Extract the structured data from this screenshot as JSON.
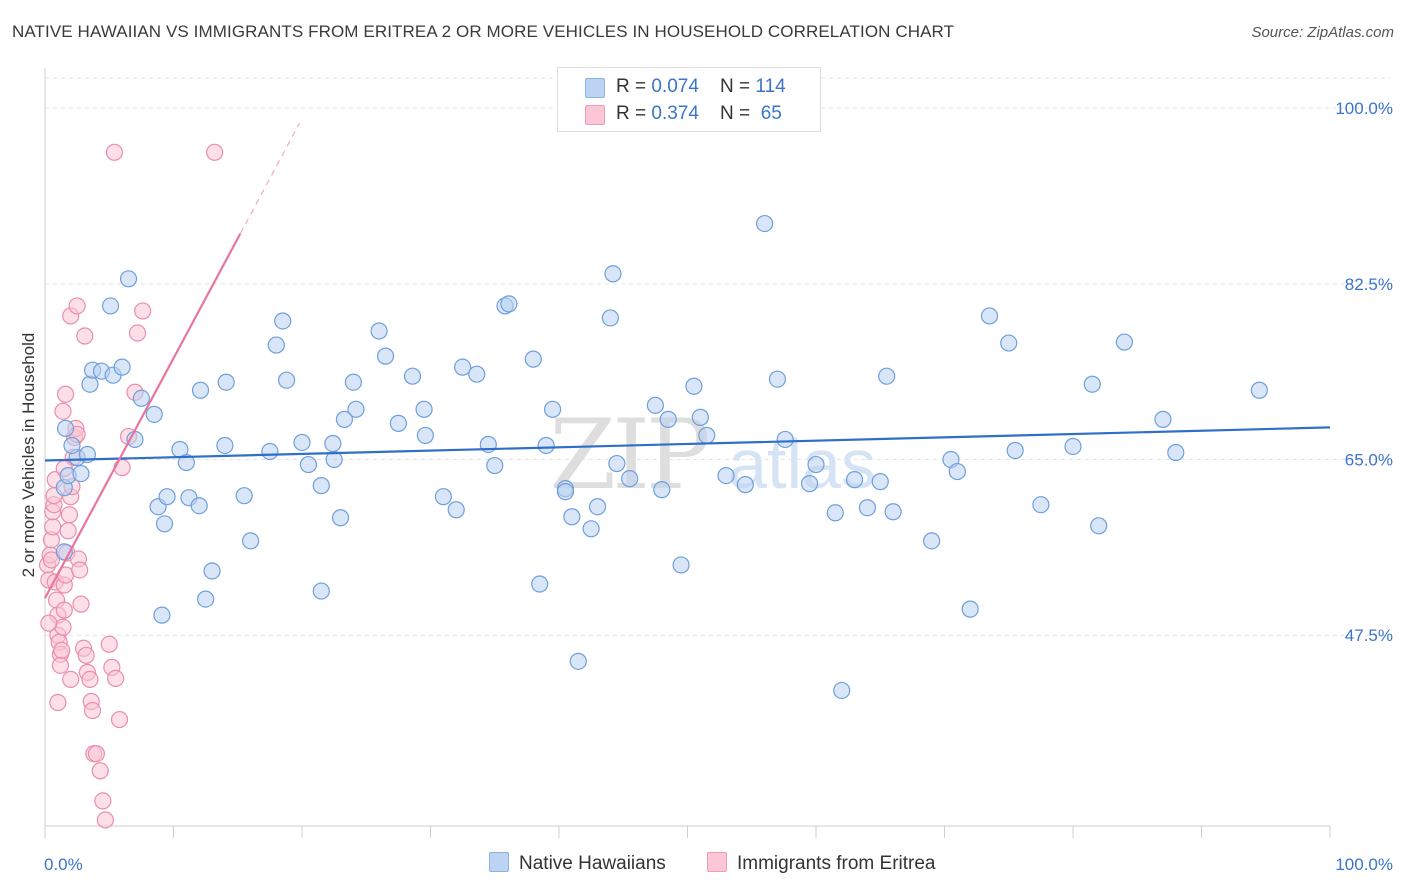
{
  "title": "NATIVE HAWAIIAN VS IMMIGRANTS FROM ERITREA 2 OR MORE VEHICLES IN HOUSEHOLD CORRELATION CHART",
  "source": "Source: ZipAtlas.com",
  "watermark": {
    "zip": "ZIP",
    "atlas": "atlas"
  },
  "legend": {
    "rows": [
      {
        "r_label": "R = ",
        "r_value": "0.074",
        "n_label": "N = ",
        "n_value": "114",
        "color": "#a9c8f0"
      },
      {
        "r_label": "R = ",
        "r_value": "0.374",
        "n_label": "N = ",
        "n_value": " 65",
        "color": "#f7b3c8"
      }
    ]
  },
  "colors": {
    "blue_fill": "#b9d2f3",
    "blue_stroke": "#6f9fdc",
    "blue_line": "#2f6fc9",
    "pink_fill": "#f9c4d4",
    "pink_stroke": "#ea8eab",
    "pink_line": "#e8759e",
    "tick_label": "#3b74c9",
    "grid": "#e3e3e3"
  },
  "chart_data": {
    "type": "scatter",
    "xlabel": "",
    "ylabel": "2 or more Vehicles in Household",
    "x_tick_labels": [
      "0.0%",
      "100.0%"
    ],
    "y_tick_labels": [
      "100.0%",
      "82.5%",
      "65.0%",
      "47.5%"
    ],
    "y_ticks": [
      100.0,
      82.5,
      65.0,
      47.5
    ],
    "xlim": [
      0,
      100
    ],
    "ylim": [
      28.5,
      103
    ],
    "grid": true,
    "legend_position": "top-center",
    "series": [
      {
        "name": "Native Hawaiians",
        "trend": {
          "x0": 0,
          "y0": 64.9,
          "x1": 100,
          "y1": 68.2
        },
        "points": [
          [
            1.5,
            55.8
          ],
          [
            1.5,
            62.2
          ],
          [
            2.5,
            65.2
          ],
          [
            1.8,
            63.4
          ],
          [
            1.6,
            68.1
          ],
          [
            2.1,
            66.4
          ],
          [
            2.8,
            63.6
          ],
          [
            3.3,
            65.5
          ],
          [
            3.5,
            72.5
          ],
          [
            3.7,
            73.9
          ],
          [
            4.4,
            73.8
          ],
          [
            5.1,
            80.3
          ],
          [
            5.3,
            73.4
          ],
          [
            6.0,
            74.2
          ],
          [
            6.5,
            83.0
          ],
          [
            7.5,
            71.1
          ],
          [
            7.0,
            67.0
          ],
          [
            8.5,
            69.5
          ],
          [
            8.8,
            60.3
          ],
          [
            9.5,
            61.3
          ],
          [
            9.3,
            58.6
          ],
          [
            9.1,
            49.5
          ],
          [
            10.5,
            66.0
          ],
          [
            11.0,
            64.7
          ],
          [
            11.2,
            61.2
          ],
          [
            12.0,
            60.4
          ],
          [
            14.0,
            66.4
          ],
          [
            14.1,
            72.7
          ],
          [
            12.1,
            71.9
          ],
          [
            13.0,
            53.9
          ],
          [
            12.5,
            51.1
          ],
          [
            15.5,
            61.4
          ],
          [
            16.0,
            56.9
          ],
          [
            17.5,
            65.8
          ],
          [
            18.0,
            76.4
          ],
          [
            18.5,
            78.8
          ],
          [
            18.8,
            72.9
          ],
          [
            20.0,
            66.7
          ],
          [
            20.5,
            64.5
          ],
          [
            21.5,
            62.4
          ],
          [
            21.5,
            51.9
          ],
          [
            22.4,
            66.6
          ],
          [
            22.5,
            65.0
          ],
          [
            23.0,
            59.2
          ],
          [
            24.0,
            72.7
          ],
          [
            24.2,
            70.0
          ],
          [
            23.3,
            69.0
          ],
          [
            26.0,
            77.8
          ],
          [
            26.5,
            75.3
          ],
          [
            27.5,
            68.6
          ],
          [
            28.6,
            73.3
          ],
          [
            29.5,
            70.0
          ],
          [
            29.6,
            67.4
          ],
          [
            31.0,
            61.3
          ],
          [
            32.0,
            60.0
          ],
          [
            32.5,
            74.2
          ],
          [
            33.6,
            73.5
          ],
          [
            34.5,
            66.5
          ],
          [
            35.0,
            64.4
          ],
          [
            35.8,
            80.3
          ],
          [
            36.1,
            80.5
          ],
          [
            38.0,
            75.0
          ],
          [
            38.5,
            52.6
          ],
          [
            39.0,
            66.4
          ],
          [
            39.5,
            70.0
          ],
          [
            40.5,
            62.1
          ],
          [
            40.5,
            61.8
          ],
          [
            41.0,
            59.3
          ],
          [
            41.5,
            44.9
          ],
          [
            42.5,
            58.1
          ],
          [
            43.0,
            60.3
          ],
          [
            44.0,
            79.1
          ],
          [
            44.2,
            83.5
          ],
          [
            44.5,
            64.6
          ],
          [
            45.5,
            63.1
          ],
          [
            47.5,
            70.4
          ],
          [
            48.0,
            62.0
          ],
          [
            48.5,
            69.0
          ],
          [
            49.5,
            54.5
          ],
          [
            50.5,
            72.3
          ],
          [
            51.0,
            69.2
          ],
          [
            51.5,
            67.4
          ],
          [
            53.0,
            63.4
          ],
          [
            54.5,
            62.5
          ],
          [
            56.0,
            88.5
          ],
          [
            57.0,
            73.0
          ],
          [
            57.6,
            67.0
          ],
          [
            59.5,
            62.6
          ],
          [
            60.0,
            64.5
          ],
          [
            61.5,
            59.7
          ],
          [
            62.0,
            42.0
          ],
          [
            63.0,
            63.0
          ],
          [
            64.0,
            60.2
          ],
          [
            65.0,
            62.8
          ],
          [
            65.5,
            73.3
          ],
          [
            66.0,
            59.8
          ],
          [
            69.0,
            56.9
          ],
          [
            70.5,
            65.0
          ],
          [
            71.0,
            63.8
          ],
          [
            72.0,
            50.1
          ],
          [
            73.5,
            79.3
          ],
          [
            75.0,
            76.6
          ],
          [
            75.5,
            65.9
          ],
          [
            77.5,
            60.5
          ],
          [
            80.0,
            66.3
          ],
          [
            81.5,
            72.5
          ],
          [
            82.0,
            58.4
          ],
          [
            84.0,
            76.7
          ],
          [
            87.0,
            69.0
          ],
          [
            88.0,
            65.7
          ],
          [
            94.5,
            71.9
          ]
        ]
      },
      {
        "name": "Immigrants from Eritrea",
        "trend": {
          "x0": 0,
          "y0": 51.2,
          "x1": 15.2,
          "y1": 87.5,
          "dash_x1": 19.8,
          "dash_y1": 98.5
        },
        "points": [
          [
            0.2,
            54.5
          ],
          [
            0.3,
            53.0
          ],
          [
            0.4,
            55.5
          ],
          [
            0.5,
            55.0
          ],
          [
            0.5,
            57.0
          ],
          [
            0.6,
            58.3
          ],
          [
            0.6,
            59.8
          ],
          [
            0.7,
            60.5
          ],
          [
            0.7,
            61.4
          ],
          [
            0.8,
            52.8
          ],
          [
            0.9,
            51.0
          ],
          [
            1.0,
            49.5
          ],
          [
            1.0,
            47.5
          ],
          [
            1.1,
            46.8
          ],
          [
            1.2,
            45.6
          ],
          [
            1.2,
            44.5
          ],
          [
            1.3,
            46.0
          ],
          [
            1.4,
            48.3
          ],
          [
            1.5,
            50.0
          ],
          [
            1.5,
            52.5
          ],
          [
            1.6,
            53.5
          ],
          [
            1.7,
            55.7
          ],
          [
            1.8,
            57.9
          ],
          [
            1.9,
            59.5
          ],
          [
            2.0,
            61.3
          ],
          [
            2.1,
            62.3
          ],
          [
            2.2,
            65.2
          ],
          [
            2.3,
            67.2
          ],
          [
            2.4,
            68.1
          ],
          [
            2.5,
            67.5
          ],
          [
            2.6,
            55.1
          ],
          [
            2.7,
            54.0
          ],
          [
            2.8,
            50.6
          ],
          [
            3.0,
            46.2
          ],
          [
            3.2,
            45.5
          ],
          [
            3.3,
            43.8
          ],
          [
            3.5,
            43.1
          ],
          [
            3.6,
            40.9
          ],
          [
            3.7,
            40.0
          ],
          [
            3.8,
            35.7
          ],
          [
            4.0,
            35.7
          ],
          [
            4.3,
            34.0
          ],
          [
            4.5,
            31.0
          ],
          [
            4.7,
            29.1
          ],
          [
            5.0,
            46.6
          ],
          [
            5.2,
            44.3
          ],
          [
            5.5,
            43.2
          ],
          [
            5.8,
            39.1
          ],
          [
            6.0,
            64.2
          ],
          [
            6.5,
            67.3
          ],
          [
            7.0,
            71.7
          ],
          [
            7.2,
            77.6
          ],
          [
            7.6,
            79.8
          ],
          [
            1.4,
            69.8
          ],
          [
            1.6,
            71.5
          ],
          [
            2.0,
            79.3
          ],
          [
            2.5,
            80.3
          ],
          [
            3.1,
            77.3
          ],
          [
            5.4,
            95.6
          ],
          [
            13.2,
            95.6
          ],
          [
            0.8,
            63.0
          ],
          [
            1.5,
            64.1
          ],
          [
            2.0,
            43.1
          ],
          [
            1.0,
            40.8
          ],
          [
            0.3,
            48.7
          ]
        ]
      }
    ]
  }
}
